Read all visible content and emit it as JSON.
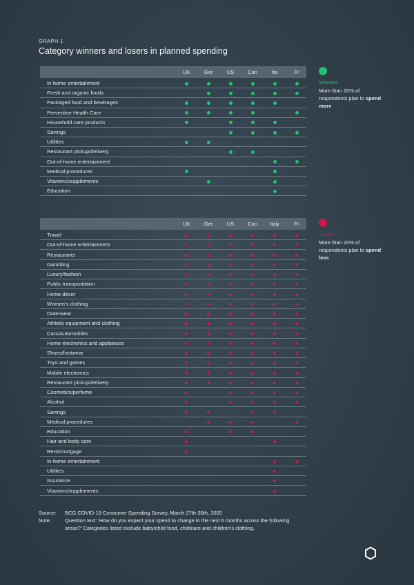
{
  "header": {
    "graph_label": "GRAPH 1",
    "title": "Category winners and losers in planned spending"
  },
  "colors": {
    "winner": "#22c46e",
    "loser": "#d3154e"
  },
  "chart_data": [
    {
      "type": "table",
      "name": "winners",
      "columns": [
        "UK",
        "Ger",
        "US",
        "Can",
        "Ita",
        "Fr"
      ],
      "rows": [
        {
          "label": "In-home entertainment",
          "marks": [
            1,
            1,
            1,
            1,
            1,
            1
          ]
        },
        {
          "label": "Fresh and organic foods",
          "marks": [
            0,
            1,
            1,
            1,
            1,
            1
          ]
        },
        {
          "label": "Packaged food and beverages",
          "marks": [
            1,
            1,
            1,
            1,
            1,
            0
          ]
        },
        {
          "label": "Preventive Health Care",
          "marks": [
            1,
            1,
            1,
            1,
            0,
            1
          ]
        },
        {
          "label": "Household care products",
          "marks": [
            1,
            0,
            1,
            1,
            1,
            0
          ]
        },
        {
          "label": "Savings",
          "marks": [
            0,
            0,
            1,
            1,
            1,
            1
          ]
        },
        {
          "label": "Utilities",
          "marks": [
            1,
            1,
            0,
            0,
            0,
            0
          ]
        },
        {
          "label": "Restaurant pickup/delivery",
          "marks": [
            0,
            0,
            1,
            1,
            0,
            0
          ]
        },
        {
          "label": "Out-of-home entertainment",
          "marks": [
            0,
            0,
            0,
            0,
            1,
            1
          ]
        },
        {
          "label": "Medical procedures",
          "marks": [
            1,
            0,
            0,
            0,
            1,
            0
          ]
        },
        {
          "label": "Vitamins/supplements",
          "marks": [
            0,
            1,
            0,
            0,
            1,
            0
          ]
        },
        {
          "label": "Education",
          "marks": [
            0,
            0,
            0,
            0,
            1,
            0
          ]
        }
      ]
    },
    {
      "type": "table",
      "name": "losers",
      "columns": [
        "UK",
        "Ger",
        "US",
        "Can",
        "Italy",
        "Fr"
      ],
      "rows": [
        {
          "label": "Travel",
          "marks": [
            1,
            1,
            1,
            1,
            1,
            1
          ]
        },
        {
          "label": "Out-of-home entertainment",
          "marks": [
            1,
            1,
            1,
            1,
            1,
            1
          ]
        },
        {
          "label": "Restaurants",
          "marks": [
            1,
            1,
            1,
            1,
            1,
            1
          ]
        },
        {
          "label": "Gambling",
          "marks": [
            1,
            1,
            1,
            1,
            1,
            1
          ]
        },
        {
          "label": "Luxury/fashion",
          "marks": [
            1,
            1,
            1,
            1,
            1,
            1
          ]
        },
        {
          "label": "Public transportation",
          "marks": [
            1,
            1,
            1,
            1,
            1,
            1
          ]
        },
        {
          "label": "Home décor",
          "marks": [
            1,
            1,
            1,
            1,
            1,
            1
          ]
        },
        {
          "label": "Women's clothing",
          "marks": [
            1,
            1,
            1,
            1,
            1,
            1
          ]
        },
        {
          "label": "Outerwear",
          "marks": [
            1,
            1,
            1,
            1,
            1,
            1
          ]
        },
        {
          "label": "Athletic equipment and clothing",
          "marks": [
            1,
            1,
            1,
            1,
            1,
            1
          ]
        },
        {
          "label": "Cars/Automobiles",
          "marks": [
            1,
            1,
            1,
            1,
            1,
            1
          ]
        },
        {
          "label": "Home electronics and appliances",
          "marks": [
            1,
            1,
            1,
            1,
            1,
            1
          ]
        },
        {
          "label": "Shoes/footwear",
          "marks": [
            1,
            1,
            1,
            1,
            1,
            1
          ]
        },
        {
          "label": "Toys and games",
          "marks": [
            1,
            1,
            1,
            1,
            1,
            1
          ]
        },
        {
          "label": "Mobile electronics",
          "marks": [
            1,
            1,
            1,
            1,
            1,
            1
          ]
        },
        {
          "label": "Restaurant pickup/delivery",
          "marks": [
            1,
            1,
            1,
            1,
            1,
            1
          ]
        },
        {
          "label": "Cosmetics/perfume",
          "marks": [
            1,
            0,
            1,
            1,
            1,
            1
          ]
        },
        {
          "label": "Alcohol",
          "marks": [
            1,
            0,
            1,
            1,
            1,
            1
          ]
        },
        {
          "label": "Savings",
          "marks": [
            1,
            1,
            0,
            1,
            1,
            0
          ]
        },
        {
          "label": "Medical procedures",
          "marks": [
            0,
            1,
            1,
            1,
            0,
            1
          ]
        },
        {
          "label": "Education",
          "marks": [
            1,
            0,
            1,
            1,
            0,
            0
          ]
        },
        {
          "label": "Hair and body care",
          "marks": [
            1,
            0,
            0,
            0,
            1,
            0
          ]
        },
        {
          "label": "Rent/mortgage",
          "marks": [
            1,
            0,
            0,
            0,
            0,
            0
          ]
        },
        {
          "label": "In-home entertainment",
          "marks": [
            0,
            0,
            0,
            0,
            1,
            1
          ]
        },
        {
          "label": "Utilities",
          "marks": [
            0,
            0,
            0,
            0,
            1,
            0
          ]
        },
        {
          "label": "Insurance",
          "marks": [
            0,
            0,
            0,
            0,
            1,
            0
          ]
        },
        {
          "label": "Vitamins/supplements",
          "marks": [
            0,
            0,
            0,
            0,
            1,
            0
          ]
        }
      ]
    }
  ],
  "legend": {
    "winners": {
      "title": "Winners",
      "desc": "More than 20% of respondents plan to",
      "strong": "spend more"
    },
    "losers": {
      "title": "Losers",
      "desc": "More than 20% of respondents plan to",
      "strong": "spend less"
    }
  },
  "footer": {
    "source_key": "Source:",
    "source": "BCG COVID-19 Consumer Spending Survey, March 27th-30th, 2020",
    "note_key": "Note:",
    "note": "Question text: 'How do you expect your spend to change in the next 6 months across the following areas?' Categories listed exclude baby/child food, childcare and children's clothing."
  },
  "logo_icon": "hexagon-logo-icon"
}
